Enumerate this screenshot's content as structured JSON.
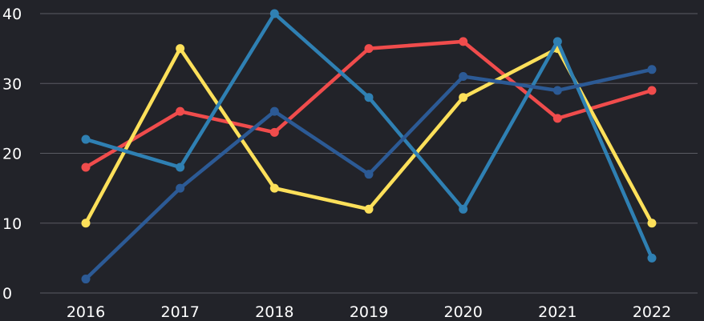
{
  "chart_data": {
    "type": "line",
    "title": "",
    "xlabel": "",
    "ylabel": "",
    "x": [
      "2016",
      "2017",
      "2018",
      "2019",
      "2020",
      "2021",
      "2022"
    ],
    "ylim": [
      0,
      40
    ],
    "yticks": [
      0,
      10,
      20,
      30,
      40
    ],
    "grid": true,
    "legend": "none",
    "series": [
      {
        "color": "#f04c4c",
        "values": [
          18,
          26,
          23,
          35,
          36,
          25,
          29
        ]
      },
      {
        "color": "#fde05a",
        "values": [
          10,
          35,
          15,
          12,
          28,
          35,
          10
        ]
      },
      {
        "color": "#2f80b3",
        "values": [
          22,
          18,
          40,
          28,
          12,
          36,
          5
        ]
      },
      {
        "color": "#2c5a95",
        "values": [
          2,
          15,
          26,
          17,
          31,
          29,
          32
        ]
      }
    ]
  }
}
